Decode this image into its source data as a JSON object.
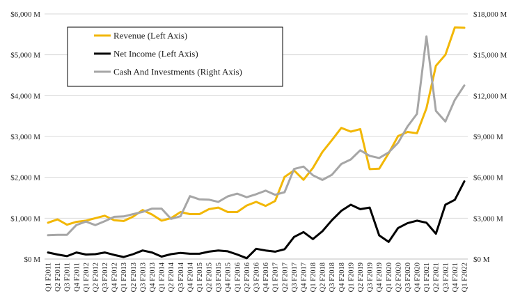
{
  "chart_data": {
    "type": "line",
    "title": "",
    "xlabel": "",
    "ylabel": "",
    "x": [
      "Q1 F2011",
      "Q2 F2011",
      "Q3 F2011",
      "Q4 F2011",
      "Q1 F2012",
      "Q2 F2012",
      "Q3 F2012",
      "Q4 F2012",
      "Q1 F2013",
      "Q2 F2013",
      "Q3 F2013",
      "Q4 F2013",
      "Q1 F2014",
      "Q2 F2014",
      "Q3 F2014",
      "Q4 F2014",
      "Q1 F2015",
      "Q2 F2015",
      "Q3 F2015",
      "Q4 F2015",
      "Q1 F2016",
      "Q2 F2016",
      "Q3 F2016",
      "Q4 F2016",
      "Q1 F2017",
      "Q2 F2017",
      "Q3 F2017",
      "Q4 F2017",
      "Q1 F2018",
      "Q2 F2018",
      "Q3 F2018",
      "Q4 F2018",
      "Q1 F2019",
      "Q2 F2019",
      "Q3 F2019",
      "Q4 F2019",
      "Q1 F2020",
      "Q2 F2020",
      "Q3 F2020",
      "Q4 F2020",
      "Q1 F2021",
      "Q2 F2021",
      "Q3 F2021",
      "Q4 F2021",
      "Q1 F2022"
    ],
    "series": [
      {
        "name": "Revenue (Left Axis)",
        "axis": "left",
        "color": "#F2B705",
        "values": [
          890,
          970,
          840,
          910,
          940,
          1000,
          1060,
          950,
          930,
          1040,
          1200,
          1090,
          940,
          1000,
          1150,
          1100,
          1100,
          1220,
          1260,
          1150,
          1150,
          1310,
          1400,
          1300,
          1420,
          2010,
          2170,
          1940,
          2230,
          2620,
          2910,
          3210,
          3120,
          3180,
          2200,
          2210,
          2590,
          3010,
          3110,
          3080,
          3690,
          4730,
          5000,
          5670,
          5660
        ],
        "note": "values in $M"
      },
      {
        "name": "Net Income (Left Axis)",
        "axis": "left",
        "color": "#000000",
        "values": [
          160,
          110,
          70,
          160,
          110,
          120,
          160,
          100,
          50,
          120,
          210,
          160,
          60,
          120,
          150,
          130,
          130,
          180,
          210,
          190,
          110,
          20,
          250,
          210,
          180,
          240,
          540,
          660,
          490,
          680,
          950,
          1180,
          1330,
          1220,
          1260,
          580,
          420,
          760,
          880,
          940,
          890,
          620,
          1330,
          1450,
          1900
        ],
        "note": "values in $M"
      },
      {
        "name": "Cash And Investments (Right Axis)",
        "axis": "right",
        "color": "#A6A6A6",
        "values": [
          1750,
          1780,
          1780,
          2500,
          2750,
          2490,
          2780,
          3100,
          3130,
          3300,
          3460,
          3700,
          3700,
          2950,
          3140,
          4620,
          4380,
          4360,
          4200,
          4600,
          4800,
          4540,
          4760,
          5020,
          4720,
          4910,
          6610,
          6790,
          6150,
          5810,
          6180,
          6980,
          7310,
          7990,
          7580,
          7420,
          7830,
          8540,
          9740,
          10660,
          16350,
          10880,
          10100,
          11690,
          12750
        ],
        "note": "values in $M"
      }
    ],
    "y_left": {
      "ylim": [
        0,
        6000
      ],
      "ticks": [
        "$0 M",
        "$1,000 M",
        "$2,000 M",
        "$3,000 M",
        "$4,000 M",
        "$5,000 M",
        "$6,000 M"
      ]
    },
    "y_right": {
      "ylim": [
        0,
        18000
      ],
      "ticks": [
        "$0 M",
        "$3,000 M",
        "$6,000 M",
        "$9,000 M",
        "$12,000 M",
        "$15,000 M",
        "$18,000 M"
      ]
    },
    "grid": true,
    "legend_placement": "top-left"
  }
}
